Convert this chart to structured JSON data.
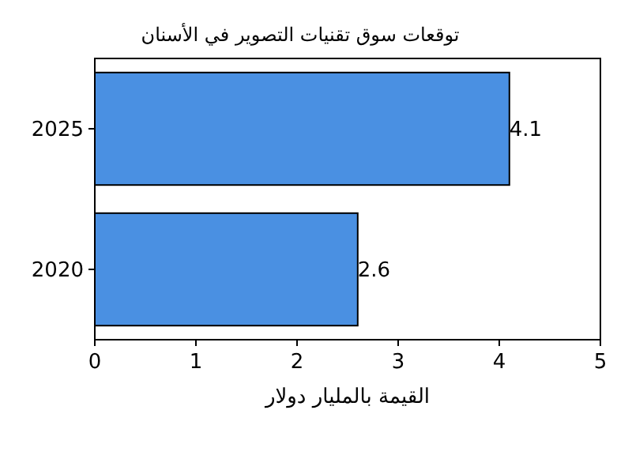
{
  "chart_data": {
    "type": "bar",
    "orientation": "horizontal",
    "title": "توقعات سوق تقنيات التصوير في الأسنان",
    "xlabel": "القيمة بالمليار دولار",
    "categories": [
      "2025",
      "2020"
    ],
    "values": [
      4.1,
      2.6
    ],
    "color": "#4a90e2",
    "xlim": [
      0,
      5
    ],
    "xticks": [
      0,
      1,
      2,
      3,
      4,
      5
    ],
    "data_labels": true,
    "grid": false
  }
}
